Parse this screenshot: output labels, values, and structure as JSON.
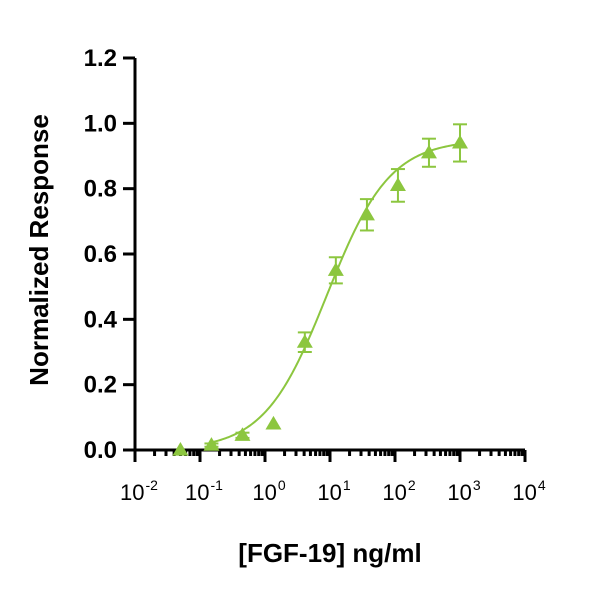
{
  "chart_data": {
    "type": "scatter",
    "xlabel": "[FGF-19] ng/ml",
    "ylabel": "Normalized Response",
    "x_scale": "log",
    "xlim": [
      0.01,
      10000
    ],
    "ylim": [
      0,
      1.2
    ],
    "y_ticks": [
      {
        "value": 0.0,
        "label": "0.0"
      },
      {
        "value": 0.2,
        "label": "0.2"
      },
      {
        "value": 0.4,
        "label": "0.4"
      },
      {
        "value": 0.6,
        "label": "0.6"
      },
      {
        "value": 0.8,
        "label": "0.8"
      },
      {
        "value": 1.0,
        "label": "1.0"
      },
      {
        "value": 1.2,
        "label": "1.2"
      }
    ],
    "x_ticks": [
      {
        "value": 0.01,
        "base": "10",
        "exp": "-2"
      },
      {
        "value": 0.1,
        "base": "10",
        "exp": "-1"
      },
      {
        "value": 1,
        "base": "10",
        "exp": "0"
      },
      {
        "value": 10,
        "base": "10",
        "exp": "1"
      },
      {
        "value": 100,
        "base": "10",
        "exp": "2"
      },
      {
        "value": 1000,
        "base": "10",
        "exp": "3"
      },
      {
        "value": 10000,
        "base": "10",
        "exp": "4"
      }
    ],
    "grid": false,
    "color": "#8cc63f",
    "marker": "triangle",
    "points": [
      {
        "x": 0.05,
        "y": 0.0,
        "err": 0.0
      },
      {
        "x": 0.15,
        "y": 0.015,
        "err": 0.005
      },
      {
        "x": 0.45,
        "y": 0.045,
        "err": 0.008
      },
      {
        "x": 1.35,
        "y": 0.08,
        "err": 0.0
      },
      {
        "x": 4.1,
        "y": 0.33,
        "err": 0.03
      },
      {
        "x": 12.3,
        "y": 0.55,
        "err": 0.04
      },
      {
        "x": 37,
        "y": 0.72,
        "err": 0.048
      },
      {
        "x": 111,
        "y": 0.81,
        "err": 0.05
      },
      {
        "x": 333,
        "y": 0.91,
        "err": 0.043
      },
      {
        "x": 1000,
        "y": 0.94,
        "err": 0.057
      }
    ],
    "fit": {
      "bottom": 0.0,
      "top": 0.95,
      "ec50": 9.0,
      "hill": 0.9,
      "x_range": [
        0.15,
        1000
      ]
    }
  }
}
